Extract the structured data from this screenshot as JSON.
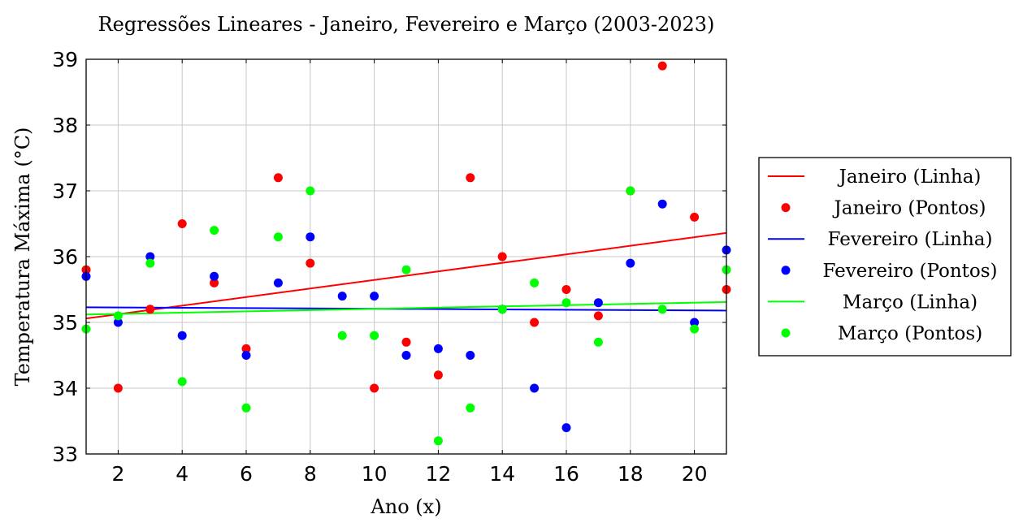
{
  "chart_data": {
    "type": "scatter",
    "title": "Regressões Lineares - Janeiro, Fevereiro e Março (2003-2023)",
    "xlabel": "Ano (x)",
    "ylabel": "Temperatura Máxima (°C)",
    "xlim": [
      1,
      21
    ],
    "ylim": [
      33,
      39
    ],
    "xticks": [
      2,
      4,
      6,
      8,
      10,
      12,
      14,
      16,
      18,
      20
    ],
    "yticks": [
      33,
      34,
      35,
      36,
      37,
      38,
      39
    ],
    "grid": true,
    "legend_position": "right",
    "x": [
      1,
      2,
      3,
      4,
      5,
      6,
      7,
      8,
      9,
      10,
      11,
      12,
      13,
      14,
      15,
      16,
      17,
      18,
      19,
      20,
      21
    ],
    "series": [
      {
        "name": "Janeiro (Pontos)",
        "color": "#ff0000",
        "kind": "points",
        "values": [
          35.8,
          34.0,
          35.2,
          36.5,
          35.6,
          34.6,
          37.2,
          35.9,
          null,
          34.0,
          34.7,
          34.2,
          37.2,
          36.0,
          35.0,
          35.5,
          35.1,
          37.0,
          38.9,
          36.6,
          35.5
        ]
      },
      {
        "name": "Fevereiro (Pontos)",
        "color": "#0000ff",
        "kind": "points",
        "values": [
          35.7,
          35.0,
          36.0,
          34.8,
          35.7,
          34.5,
          35.6,
          36.3,
          35.4,
          35.4,
          34.5,
          34.6,
          34.5,
          35.2,
          34.0,
          33.4,
          35.3,
          35.9,
          36.8,
          35.0,
          36.1
        ]
      },
      {
        "name": "Março (Pontos)",
        "color": "#00ff00",
        "kind": "points",
        "values": [
          34.9,
          35.1,
          35.9,
          34.1,
          36.4,
          33.7,
          36.3,
          37.0,
          34.8,
          34.8,
          35.8,
          33.2,
          33.7,
          35.2,
          35.6,
          35.3,
          34.7,
          37.0,
          35.2,
          34.9,
          35.8
        ]
      },
      {
        "name": "Janeiro (Linha)",
        "color": "#ff0000",
        "kind": "line",
        "x": [
          1,
          21
        ],
        "values": [
          35.06,
          36.36
        ]
      },
      {
        "name": "Fevereiro (Linha)",
        "color": "#0000ff",
        "kind": "line",
        "x": [
          1,
          21
        ],
        "values": [
          35.23,
          35.18
        ]
      },
      {
        "name": "Março (Linha)",
        "color": "#00ff00",
        "kind": "line",
        "x": [
          1,
          21
        ],
        "values": [
          35.12,
          35.31
        ]
      }
    ],
    "legend": [
      {
        "label": "Janeiro (Linha)",
        "color": "#ff0000",
        "kind": "line"
      },
      {
        "label": "Janeiro (Pontos)",
        "color": "#ff0000",
        "kind": "points"
      },
      {
        "label": "Fevereiro (Linha)",
        "color": "#0000ff",
        "kind": "line"
      },
      {
        "label": "Fevereiro (Pontos)",
        "color": "#0000ff",
        "kind": "points"
      },
      {
        "label": "Março (Linha)",
        "color": "#00ff00",
        "kind": "line"
      },
      {
        "label": "Março (Pontos)",
        "color": "#00ff00",
        "kind": "points"
      }
    ]
  }
}
